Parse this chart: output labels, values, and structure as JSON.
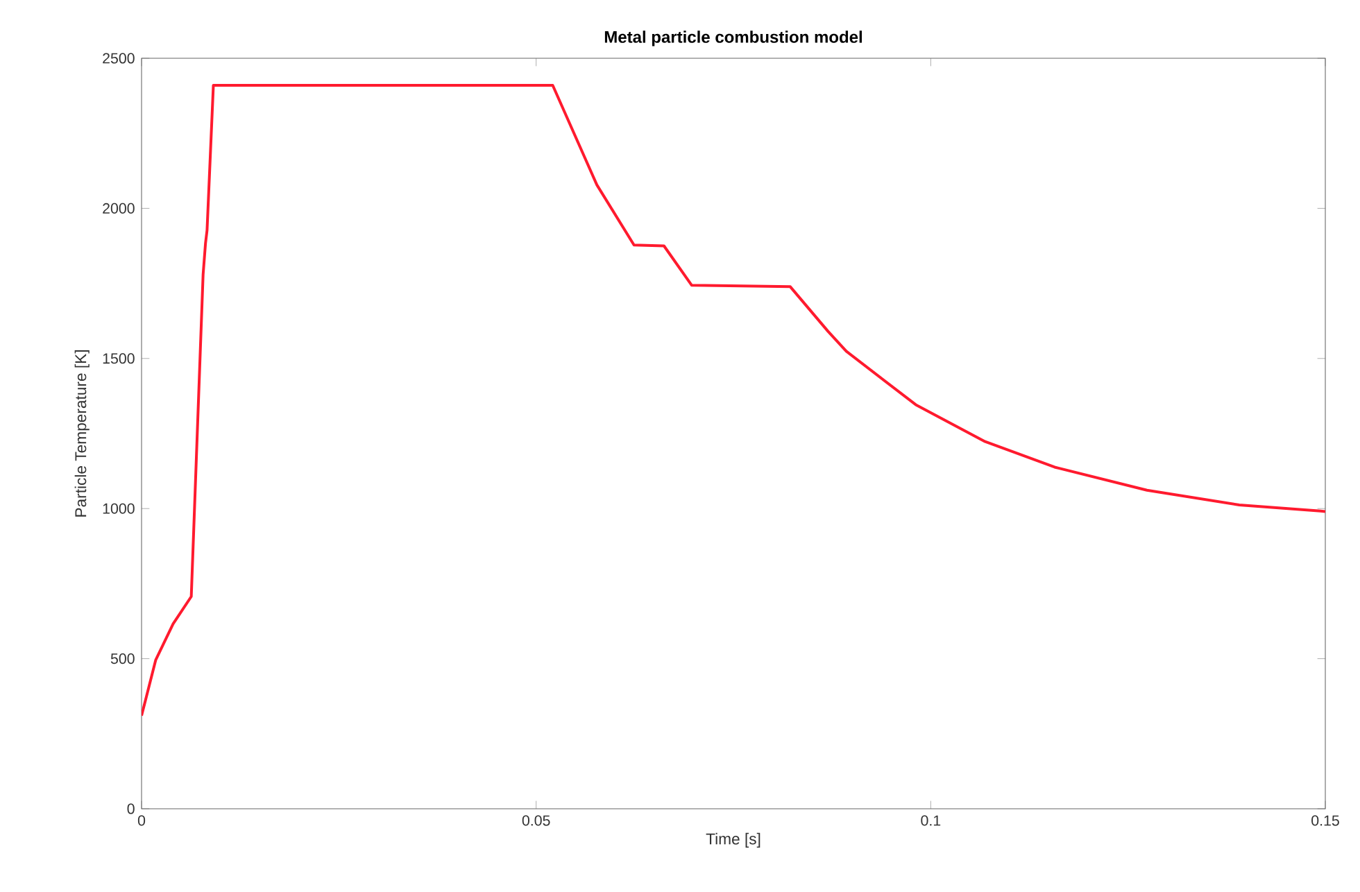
{
  "chart_data": {
    "type": "line",
    "title": "Metal particle combustion model",
    "xlabel": "Time [s]",
    "ylabel": "Particle Temperature [K]",
    "x": [
      0,
      0.0018,
      0.004,
      0.0063,
      0.0078,
      0.0081,
      0.0083,
      0.0091,
      0.0521,
      0.0577,
      0.0624,
      0.0662,
      0.0697,
      0.0822,
      0.087,
      0.0893,
      0.0981,
      0.1069,
      0.1157,
      0.1274,
      0.1391,
      0.1494,
      0.15
    ],
    "series": [
      {
        "color": "#ff1a2e",
        "values": [
          310,
          496,
          616,
          707,
          1780,
          1883,
          1927,
          2410,
          2410,
          2078,
          1878,
          1875,
          1744,
          1739,
          1590,
          1524,
          1346,
          1223,
          1138,
          1061,
          1012,
          992,
          990
        ]
      }
    ],
    "xlim": [
      0,
      0.15
    ],
    "xticks": [
      0,
      0.05,
      0.1,
      0.15
    ],
    "ylim": [
      0,
      2500
    ],
    "yticks": [
      0,
      500,
      1000,
      1500,
      2000,
      2500
    ],
    "grid": false,
    "marker": "none",
    "line_style": "solid"
  }
}
